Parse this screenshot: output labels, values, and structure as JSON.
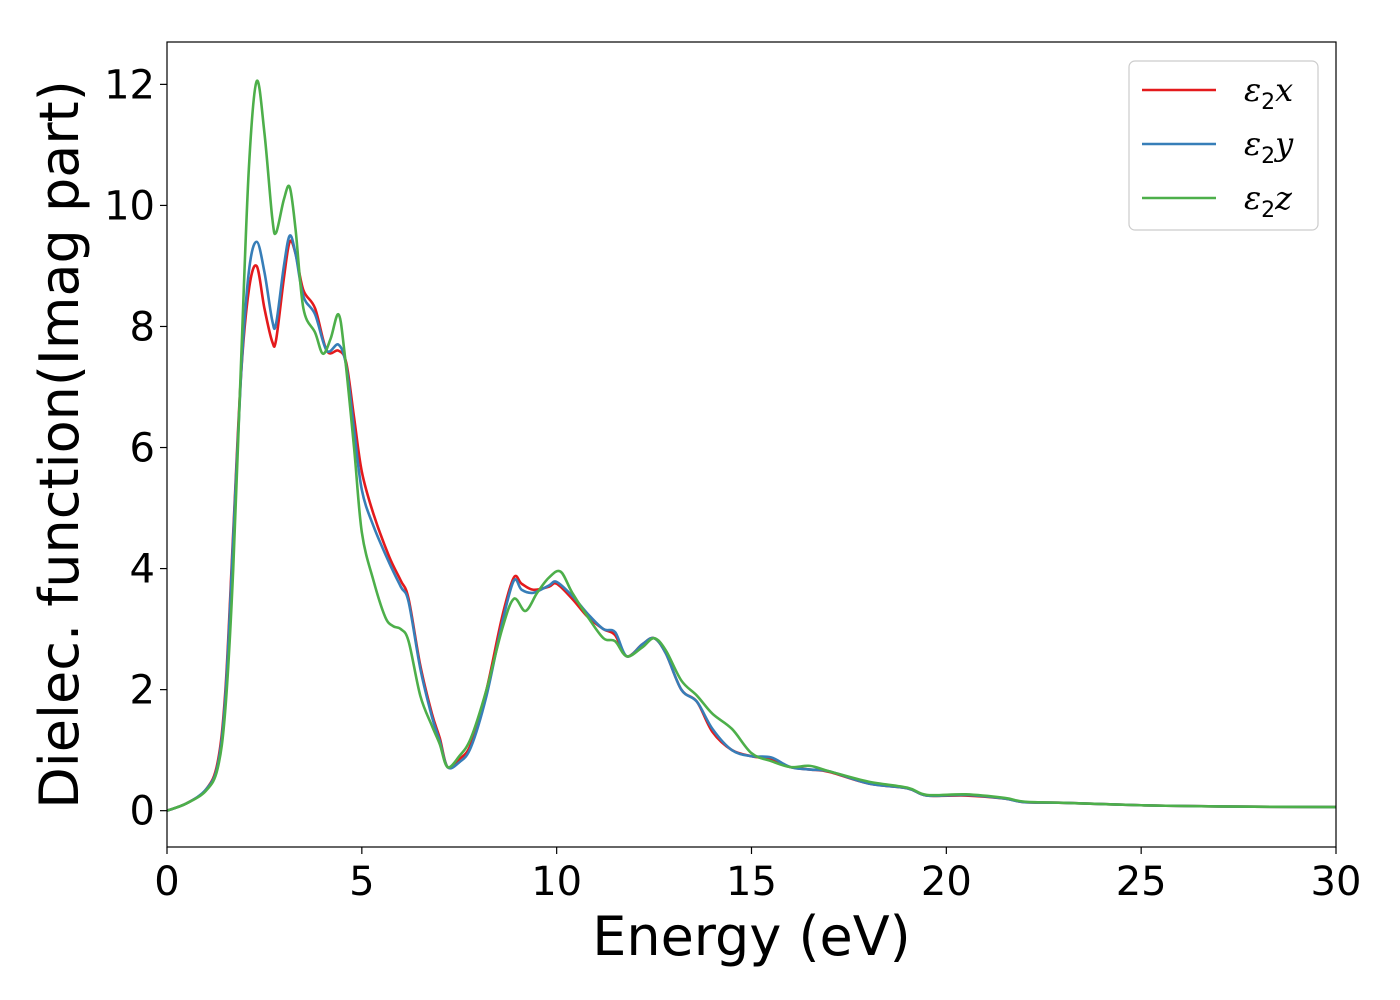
{
  "chart_data": {
    "type": "line",
    "title": "",
    "xlabel": "Energy (eV)",
    "ylabel": "Dielec. function(Imag part)",
    "xlim": [
      0,
      30
    ],
    "ylim": [
      -0.6,
      12.7
    ],
    "xticks": [
      0,
      5,
      10,
      15,
      20,
      25,
      30
    ],
    "xtick_labels": [
      "0",
      "5",
      "10",
      "15",
      "20",
      "25",
      "30"
    ],
    "yticks": [
      0,
      2,
      4,
      6,
      8,
      10,
      12
    ],
    "ytick_labels": [
      "0",
      "2",
      "4",
      "6",
      "8",
      "10",
      "12"
    ],
    "grid": false,
    "legend_position": "top-right",
    "series": [
      {
        "name": "ε2x",
        "legend_base": "ε",
        "legend_sub": "2",
        "legend_tail": "x",
        "color": "#e41a1c",
        "points": [
          [
            0,
            0
          ],
          [
            0.5,
            0.12
          ],
          [
            1.0,
            0.35
          ],
          [
            1.3,
            0.8
          ],
          [
            1.5,
            2.0
          ],
          [
            1.7,
            4.6
          ],
          [
            1.9,
            7.2
          ],
          [
            2.1,
            8.6
          ],
          [
            2.3,
            9.0
          ],
          [
            2.5,
            8.3
          ],
          [
            2.7,
            7.75
          ],
          [
            2.8,
            7.78
          ],
          [
            3.0,
            8.8
          ],
          [
            3.15,
            9.4
          ],
          [
            3.3,
            9.2
          ],
          [
            3.5,
            8.6
          ],
          [
            3.8,
            8.3
          ],
          [
            4.1,
            7.6
          ],
          [
            4.4,
            7.6
          ],
          [
            4.6,
            7.4
          ],
          [
            4.8,
            6.5
          ],
          [
            5.0,
            5.6
          ],
          [
            5.3,
            4.9
          ],
          [
            5.7,
            4.2
          ],
          [
            6.0,
            3.8
          ],
          [
            6.2,
            3.5
          ],
          [
            6.5,
            2.4
          ],
          [
            6.8,
            1.6
          ],
          [
            7.0,
            1.2
          ],
          [
            7.2,
            0.72
          ],
          [
            7.5,
            0.85
          ],
          [
            7.8,
            1.1
          ],
          [
            8.2,
            2.0
          ],
          [
            8.6,
            3.2
          ],
          [
            8.9,
            3.85
          ],
          [
            9.1,
            3.75
          ],
          [
            9.4,
            3.65
          ],
          [
            9.8,
            3.7
          ],
          [
            10.0,
            3.75
          ],
          [
            10.4,
            3.5
          ],
          [
            10.8,
            3.2
          ],
          [
            11.2,
            3.0
          ],
          [
            11.5,
            2.9
          ],
          [
            11.8,
            2.55
          ],
          [
            12.2,
            2.75
          ],
          [
            12.5,
            2.85
          ],
          [
            12.8,
            2.6
          ],
          [
            13.2,
            2.0
          ],
          [
            13.6,
            1.8
          ],
          [
            14.0,
            1.3
          ],
          [
            14.5,
            1.0
          ],
          [
            15.0,
            0.9
          ],
          [
            15.5,
            0.85
          ],
          [
            16.0,
            0.72
          ],
          [
            16.5,
            0.68
          ],
          [
            17.0,
            0.64
          ],
          [
            18.0,
            0.45
          ],
          [
            19.0,
            0.37
          ],
          [
            19.5,
            0.25
          ],
          [
            20.5,
            0.25
          ],
          [
            21.5,
            0.2
          ],
          [
            22.0,
            0.14
          ],
          [
            23.0,
            0.13
          ],
          [
            25.0,
            0.09
          ],
          [
            27.0,
            0.07
          ],
          [
            30.0,
            0.06
          ]
        ]
      },
      {
        "name": "ε2y",
        "legend_base": "ε",
        "legend_sub": "2",
        "legend_tail": "y",
        "color": "#377eb8",
        "points": [
          [
            0,
            0
          ],
          [
            0.5,
            0.12
          ],
          [
            1.0,
            0.35
          ],
          [
            1.3,
            0.75
          ],
          [
            1.5,
            1.9
          ],
          [
            1.7,
            4.5
          ],
          [
            1.9,
            7.2
          ],
          [
            2.1,
            8.9
          ],
          [
            2.3,
            9.4
          ],
          [
            2.5,
            8.9
          ],
          [
            2.7,
            8.1
          ],
          [
            2.8,
            8.05
          ],
          [
            3.0,
            9.0
          ],
          [
            3.15,
            9.5
          ],
          [
            3.3,
            9.2
          ],
          [
            3.5,
            8.5
          ],
          [
            3.8,
            8.2
          ],
          [
            4.1,
            7.6
          ],
          [
            4.4,
            7.7
          ],
          [
            4.6,
            7.35
          ],
          [
            4.8,
            6.3
          ],
          [
            5.0,
            5.3
          ],
          [
            5.3,
            4.7
          ],
          [
            5.7,
            4.1
          ],
          [
            6.0,
            3.7
          ],
          [
            6.2,
            3.45
          ],
          [
            6.5,
            2.35
          ],
          [
            6.8,
            1.55
          ],
          [
            7.0,
            1.15
          ],
          [
            7.2,
            0.72
          ],
          [
            7.5,
            0.8
          ],
          [
            7.8,
            1.05
          ],
          [
            8.2,
            1.9
          ],
          [
            8.6,
            3.1
          ],
          [
            8.9,
            3.8
          ],
          [
            9.1,
            3.65
          ],
          [
            9.4,
            3.6
          ],
          [
            9.8,
            3.72
          ],
          [
            10.0,
            3.78
          ],
          [
            10.4,
            3.55
          ],
          [
            10.8,
            3.25
          ],
          [
            11.2,
            3.0
          ],
          [
            11.5,
            2.95
          ],
          [
            11.8,
            2.55
          ],
          [
            12.2,
            2.75
          ],
          [
            12.5,
            2.85
          ],
          [
            12.8,
            2.6
          ],
          [
            13.2,
            2.0
          ],
          [
            13.6,
            1.8
          ],
          [
            14.0,
            1.35
          ],
          [
            14.5,
            1.0
          ],
          [
            15.0,
            0.9
          ],
          [
            15.5,
            0.88
          ],
          [
            16.0,
            0.72
          ],
          [
            16.5,
            0.68
          ],
          [
            17.0,
            0.65
          ],
          [
            18.0,
            0.45
          ],
          [
            19.0,
            0.37
          ],
          [
            19.5,
            0.25
          ],
          [
            20.5,
            0.26
          ],
          [
            21.5,
            0.2
          ],
          [
            22.0,
            0.14
          ],
          [
            23.0,
            0.13
          ],
          [
            25.0,
            0.09
          ],
          [
            27.0,
            0.07
          ],
          [
            30.0,
            0.06
          ]
        ]
      },
      {
        "name": "ε2z",
        "legend_base": "ε",
        "legend_sub": "2",
        "legend_tail": "z",
        "color": "#4daf4a",
        "points": [
          [
            0,
            0
          ],
          [
            0.5,
            0.12
          ],
          [
            1.0,
            0.33
          ],
          [
            1.3,
            0.7
          ],
          [
            1.5,
            1.7
          ],
          [
            1.7,
            4.0
          ],
          [
            1.9,
            7.4
          ],
          [
            2.1,
            10.6
          ],
          [
            2.3,
            12.05
          ],
          [
            2.5,
            11.2
          ],
          [
            2.7,
            9.8
          ],
          [
            2.8,
            9.55
          ],
          [
            3.0,
            10.1
          ],
          [
            3.15,
            10.3
          ],
          [
            3.3,
            9.6
          ],
          [
            3.5,
            8.3
          ],
          [
            3.8,
            7.9
          ],
          [
            4.0,
            7.55
          ],
          [
            4.2,
            7.8
          ],
          [
            4.4,
            8.2
          ],
          [
            4.55,
            7.6
          ],
          [
            4.8,
            6.0
          ],
          [
            5.0,
            4.6
          ],
          [
            5.3,
            3.8
          ],
          [
            5.6,
            3.2
          ],
          [
            5.8,
            3.05
          ],
          [
            6.0,
            3.0
          ],
          [
            6.2,
            2.8
          ],
          [
            6.5,
            1.9
          ],
          [
            6.8,
            1.4
          ],
          [
            7.0,
            1.1
          ],
          [
            7.2,
            0.72
          ],
          [
            7.5,
            0.9
          ],
          [
            7.8,
            1.2
          ],
          [
            8.2,
            2.0
          ],
          [
            8.6,
            3.0
          ],
          [
            8.9,
            3.5
          ],
          [
            9.2,
            3.3
          ],
          [
            9.5,
            3.6
          ],
          [
            9.8,
            3.85
          ],
          [
            10.1,
            3.95
          ],
          [
            10.4,
            3.6
          ],
          [
            10.8,
            3.2
          ],
          [
            11.2,
            2.85
          ],
          [
            11.5,
            2.8
          ],
          [
            11.8,
            2.55
          ],
          [
            12.2,
            2.7
          ],
          [
            12.5,
            2.85
          ],
          [
            12.8,
            2.65
          ],
          [
            13.2,
            2.15
          ],
          [
            13.6,
            1.9
          ],
          [
            14.0,
            1.6
          ],
          [
            14.5,
            1.35
          ],
          [
            15.0,
            0.95
          ],
          [
            15.5,
            0.82
          ],
          [
            16.0,
            0.72
          ],
          [
            16.5,
            0.74
          ],
          [
            17.0,
            0.65
          ],
          [
            18.0,
            0.48
          ],
          [
            19.0,
            0.38
          ],
          [
            19.5,
            0.26
          ],
          [
            20.5,
            0.27
          ],
          [
            21.5,
            0.21
          ],
          [
            22.0,
            0.15
          ],
          [
            23.0,
            0.13
          ],
          [
            25.0,
            0.09
          ],
          [
            27.0,
            0.07
          ],
          [
            30.0,
            0.06
          ]
        ]
      }
    ]
  }
}
